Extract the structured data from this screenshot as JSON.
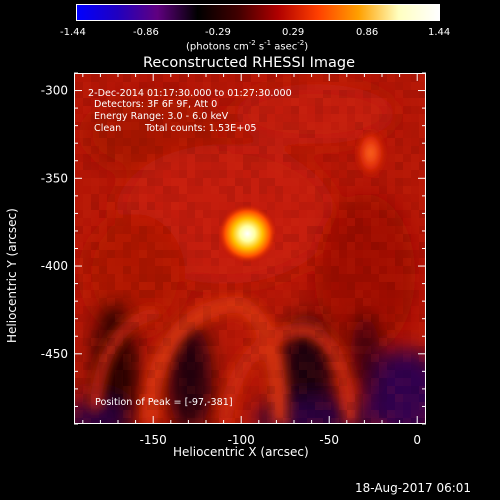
{
  "colorbar": {
    "ticks": [
      "-1.44",
      "-0.86",
      "-0.29",
      "0.29",
      "0.86",
      "1.44"
    ],
    "unit_html": "(photons cm<sup>-2</sup> s<sup>-1</sup> asec<sup>-2</sup>)",
    "unit_text": "(photons cm-2 s-1 asec-2)",
    "colormap_stops": [
      "#0000ff",
      "#2000c0",
      "#600080",
      "#000000",
      "#400000",
      "#b00000",
      "#ff4000",
      "#ffa000",
      "#ffffc0",
      "#ffffff"
    ]
  },
  "plot": {
    "title": "Reconstructed RHESSI Image",
    "xlabel": "Heliocentric X (arcsec)",
    "ylabel": "Heliocentric Y (arcsec)",
    "xlim": [
      -195,
      5
    ],
    "ylim": [
      -490,
      -290
    ],
    "xticks": [
      "-150",
      "-100",
      "-50",
      "0"
    ],
    "xtick_values": [
      -150,
      -100,
      -50,
      0
    ],
    "yticks": [
      "-300",
      "-350",
      "-400",
      "-450"
    ],
    "ytick_values": [
      -300,
      -350,
      -400,
      -450
    ],
    "info": {
      "line1": "2-Dec-2014 01:17:30.000 to 01:27:30.000",
      "line2": "Detectors: 3F 6F 9F, Att 0",
      "line3": "Energy Range: 3.0 - 6.0 keV",
      "line4a": "Clean",
      "line4b": "Total counts: 1.53E+05"
    },
    "peak_label": "Position of Peak = [-97,-381]",
    "peak": {
      "x": -97,
      "y": -381
    },
    "secondary_source": {
      "x": -27,
      "y": -335
    }
  },
  "footer": {
    "date": "18-Aug-2017 06:01"
  }
}
